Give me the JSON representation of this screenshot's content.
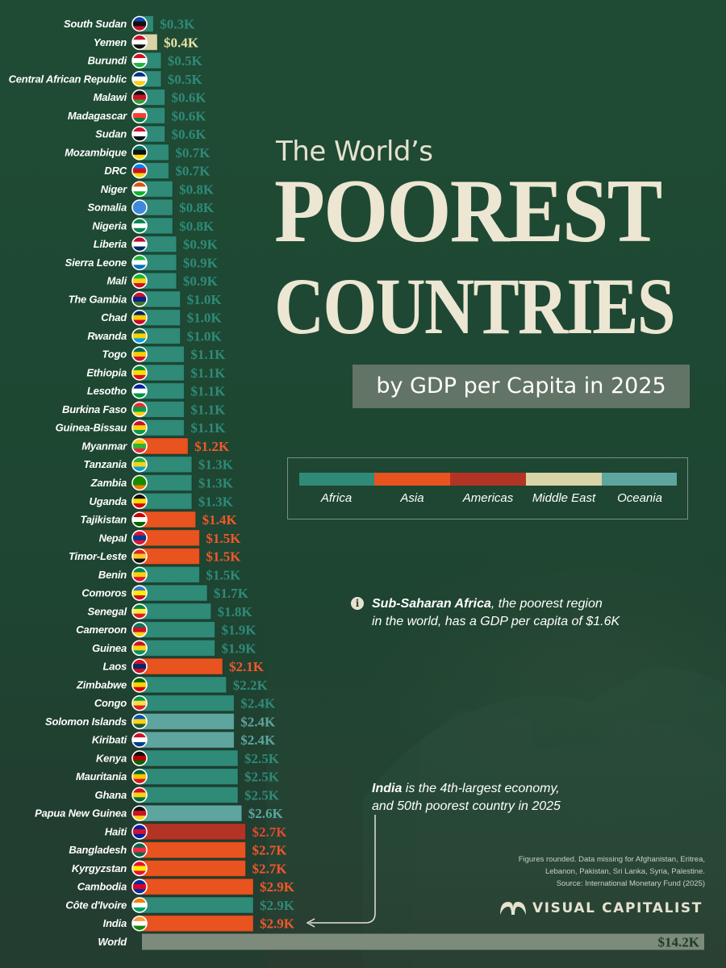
{
  "title": {
    "pre": "The World’s",
    "main_line1": "POOREST",
    "main_line2": "COUNTRIES",
    "subtitle": "by GDP per Capita in 2025"
  },
  "legend": [
    {
      "name": "Africa",
      "color": "#2f8a78"
    },
    {
      "name": "Asia",
      "color": "#e8531f"
    },
    {
      "name": "Americas",
      "color": "#b33424"
    },
    {
      "name": "Middle East",
      "color": "#d8d4a8"
    },
    {
      "name": "Oceania",
      "color": "#5ea59f"
    }
  ],
  "notes": {
    "africa_bold": "Sub-Saharan Africa",
    "africa_rest1": ", the poorest region",
    "africa_line2": "in the world, has a GDP per capita of $1.6K",
    "india_bold": "India",
    "india_rest1": " is the 4th-largest economy,",
    "india_line2": "and 50th poorest country in 2025"
  },
  "source": {
    "line1": "Figures rounded. Data missing for Afghanistan, Eritrea,",
    "line2": "Lebanon, Pakistan, Sri Lanka, Syria, Palestine.",
    "line3": "Source: International Monetary Fund (2025)"
  },
  "brand": "VISUAL CAPITALIST",
  "info_icon": "info-icon",
  "chart_data": {
    "type": "bar",
    "orientation": "horizontal",
    "unit": "USD thousands (GDP per capita)",
    "categories": [
      "South Sudan",
      "Yemen",
      "Burundi",
      "Central African Republic",
      "Malawi",
      "Madagascar",
      "Sudan",
      "Mozambique",
      "DRC",
      "Niger",
      "Somalia",
      "Nigeria",
      "Liberia",
      "Sierra Leone",
      "Mali",
      "The Gambia",
      "Chad",
      "Rwanda",
      "Togo",
      "Ethiopia",
      "Lesotho",
      "Burkina Faso",
      "Guinea-Bissau",
      "Myanmar",
      "Tanzania",
      "Zambia",
      "Uganda",
      "Tajikistan",
      "Nepal",
      "Timor-Leste",
      "Benin",
      "Comoros",
      "Senegal",
      "Cameroon",
      "Guinea",
      "Laos",
      "Zimbabwe",
      "Congo",
      "Solomon Islands",
      "Kiribati",
      "Kenya",
      "Mauritania",
      "Ghana",
      "Papua New Guinea",
      "Haiti",
      "Bangladesh",
      "Kyrgyzstan",
      "Cambodia",
      "Côte d'Ivoire",
      "India",
      "World"
    ],
    "values": [
      0.3,
      0.4,
      0.5,
      0.5,
      0.6,
      0.6,
      0.6,
      0.7,
      0.7,
      0.8,
      0.8,
      0.8,
      0.9,
      0.9,
      0.9,
      1.0,
      1.0,
      1.0,
      1.1,
      1.1,
      1.1,
      1.1,
      1.1,
      1.2,
      1.3,
      1.3,
      1.3,
      1.4,
      1.5,
      1.5,
      1.5,
      1.7,
      1.8,
      1.9,
      1.9,
      2.1,
      2.2,
      2.4,
      2.4,
      2.4,
      2.5,
      2.5,
      2.5,
      2.6,
      2.7,
      2.7,
      2.7,
      2.9,
      2.9,
      2.9,
      14.2
    ],
    "value_labels": [
      "$0.3K",
      "$0.4K",
      "$0.5K",
      "$0.5K",
      "$0.6K",
      "$0.6K",
      "$0.6K",
      "$0.7K",
      "$0.7K",
      "$0.8K",
      "$0.8K",
      "$0.8K",
      "$0.9K",
      "$0.9K",
      "$0.9K",
      "$1.0K",
      "$1.0K",
      "$1.0K",
      "$1.1K",
      "$1.1K",
      "$1.1K",
      "$1.1K",
      "$1.1K",
      "$1.2K",
      "$1.3K",
      "$1.3K",
      "$1.3K",
      "$1.4K",
      "$1.5K",
      "$1.5K",
      "$1.5K",
      "$1.7K",
      "$1.8K",
      "$1.9K",
      "$1.9K",
      "$2.1K",
      "$2.2K",
      "$2.4K",
      "$2.4K",
      "$2.4K",
      "$2.5K",
      "$2.5K",
      "$2.5K",
      "$2.6K",
      "$2.7K",
      "$2.7K",
      "$2.7K",
      "$2.9K",
      "$2.9K",
      "$2.9K",
      "$14.2K"
    ],
    "regions": [
      "Africa",
      "Middle East",
      "Africa",
      "Africa",
      "Africa",
      "Africa",
      "Africa",
      "Africa",
      "Africa",
      "Africa",
      "Africa",
      "Africa",
      "Africa",
      "Africa",
      "Africa",
      "Africa",
      "Africa",
      "Africa",
      "Africa",
      "Africa",
      "Africa",
      "Africa",
      "Africa",
      "Asia",
      "Africa",
      "Africa",
      "Africa",
      "Asia",
      "Asia",
      "Asia",
      "Africa",
      "Africa",
      "Africa",
      "Africa",
      "Africa",
      "Asia",
      "Africa",
      "Africa",
      "Oceania",
      "Oceania",
      "Africa",
      "Africa",
      "Africa",
      "Oceania",
      "Americas",
      "Asia",
      "Asia",
      "Asia",
      "Africa",
      "Asia",
      "World"
    ],
    "flags": [
      [
        "#0f47af",
        "#111111",
        "#c8102e"
      ],
      [
        "#ce1126",
        "#ffffff",
        "#111111"
      ],
      [
        "#ce1126",
        "#ffffff",
        "#1eb53a"
      ],
      [
        "#003082",
        "#ffffff",
        "#ffce00"
      ],
      [
        "#111111",
        "#ce1126",
        "#339e35"
      ],
      [
        "#ffffff",
        "#fc3d32",
        "#007e3a"
      ],
      [
        "#d21034",
        "#ffffff",
        "#111111"
      ],
      [
        "#007168",
        "#111111",
        "#fce100"
      ],
      [
        "#007fff",
        "#ce1021",
        "#f7d618"
      ],
      [
        "#e05206",
        "#ffffff",
        "#0db02b"
      ],
      [
        "#4189dd",
        "#4189dd",
        "#4189dd"
      ],
      [
        "#008751",
        "#ffffff",
        "#008751"
      ],
      [
        "#bf0a30",
        "#ffffff",
        "#002868"
      ],
      [
        "#1eb53a",
        "#ffffff",
        "#0072c6"
      ],
      [
        "#14b53a",
        "#fcd116",
        "#ce1126"
      ],
      [
        "#ce1126",
        "#0c1c8c",
        "#3a7728"
      ],
      [
        "#002664",
        "#fecb00",
        "#c60c30"
      ],
      [
        "#20603d",
        "#fad201",
        "#00a1de"
      ],
      [
        "#006a4e",
        "#ffce00",
        "#d21034"
      ],
      [
        "#078930",
        "#fcdd09",
        "#da121a"
      ],
      [
        "#00209f",
        "#ffffff",
        "#009543"
      ],
      [
        "#ef2b2d",
        "#009e49",
        "#fcd116"
      ],
      [
        "#ce1126",
        "#fcd116",
        "#009e49"
      ],
      [
        "#fecb00",
        "#34b233",
        "#ea2839"
      ],
      [
        "#1eb53a",
        "#fcd116",
        "#00a3dd"
      ],
      [
        "#198a00",
        "#198a00",
        "#ef7d00"
      ],
      [
        "#111111",
        "#fcdc04",
        "#d90000"
      ],
      [
        "#cc0000",
        "#ffffff",
        "#006600"
      ],
      [
        "#dc143c",
        "#003893",
        "#dc143c"
      ],
      [
        "#dc241f",
        "#ffc726",
        "#111111"
      ],
      [
        "#008751",
        "#fcd116",
        "#e8112d"
      ],
      [
        "#3a75c4",
        "#fff000",
        "#ce1126"
      ],
      [
        "#00853f",
        "#fdef42",
        "#e31b23"
      ],
      [
        "#007a5e",
        "#ce1126",
        "#fcd116"
      ],
      [
        "#ce1126",
        "#fcd116",
        "#009460"
      ],
      [
        "#ce1126",
        "#002868",
        "#ce1126"
      ],
      [
        "#006400",
        "#ffd200",
        "#d40000"
      ],
      [
        "#009543",
        "#fbde4a",
        "#dc241f"
      ],
      [
        "#0051ba",
        "#fcd116",
        "#215b33"
      ],
      [
        "#ce1126",
        "#ffffff",
        "#003f87"
      ],
      [
        "#111111",
        "#bb0000",
        "#006600"
      ],
      [
        "#006233",
        "#ffc400",
        "#d01c1f"
      ],
      [
        "#ce1126",
        "#fcd116",
        "#006b3f"
      ],
      [
        "#111111",
        "#ce1126",
        "#fcd116"
      ],
      [
        "#00209f",
        "#d21034",
        "#00209f"
      ],
      [
        "#006a4e",
        "#f42a41",
        "#006a4e"
      ],
      [
        "#e8112d",
        "#ffef00",
        "#e8112d"
      ],
      [
        "#032ea1",
        "#e00025",
        "#032ea1"
      ],
      [
        "#f77f00",
        "#ffffff",
        "#009e60"
      ],
      [
        "#ff9933",
        "#ffffff",
        "#138808"
      ],
      [
        "#6e7d6f",
        "#6e7d6f",
        "#6e7d6f"
      ]
    ],
    "region_colors": {
      "Africa": "#2f8a78",
      "Asia": "#e8531f",
      "Americas": "#b33424",
      "Middle East": "#d8d4a8",
      "Oceania": "#5ea59f",
      "World": "#7c8b7c"
    },
    "value_label_colors": {
      "Africa": "#2f8a78",
      "Asia": "#f0582a",
      "Americas": "#e04a2e",
      "Middle East": "#e8e1a6",
      "Oceania": "#5ea59f",
      "World": "#1e3a2a"
    },
    "xlim": [
      0,
      14.2
    ]
  }
}
